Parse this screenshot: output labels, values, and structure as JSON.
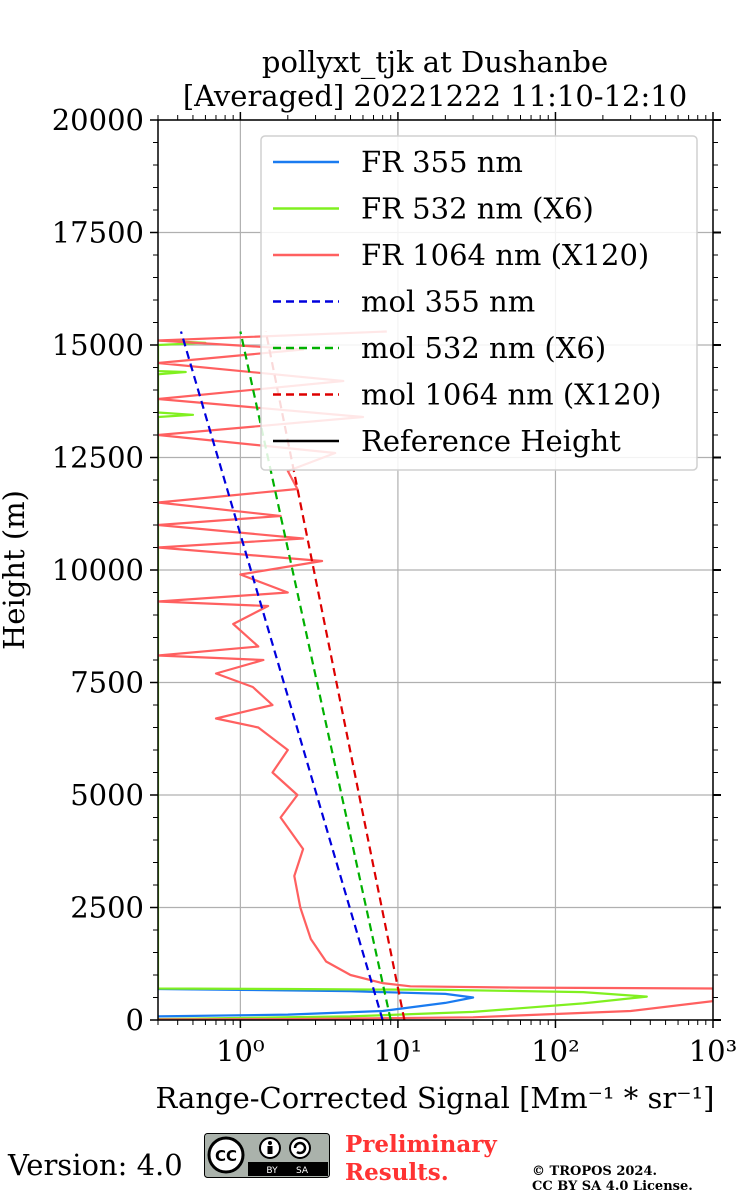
{
  "chart_data": {
    "type": "line",
    "title_line1": "pollyxt_tjk at Dushanbe",
    "title_line2": "[Averaged] 20221222 11:10-12:10",
    "xlabel": "Range-Corrected Signal [Mm⁻¹ * sr⁻¹]",
    "ylabel": "Height (m)",
    "xscale": "log",
    "xlim": [
      0.3,
      1000
    ],
    "ylim": [
      0,
      20000
    ],
    "x_tick_labels": [
      "10⁰",
      "10¹",
      "10²",
      "10³"
    ],
    "x_ticks": [
      1,
      10,
      100,
      1000
    ],
    "y_ticks": [
      0,
      2500,
      5000,
      7500,
      10000,
      12500,
      15000,
      17500,
      20000
    ],
    "y_tick_labels": [
      "0",
      "2500",
      "5000",
      "7500",
      "10000",
      "12500",
      "15000",
      "17500",
      "20000"
    ],
    "grid": true,
    "legend_position": "top-right",
    "series": [
      {
        "name": "FR 355 nm",
        "color": "#1a7bf0",
        "style": "solid",
        "points": [
          [
            0.3,
            80
          ],
          [
            2,
            120
          ],
          [
            8,
            200
          ],
          [
            20,
            380
          ],
          [
            30,
            500
          ],
          [
            20,
            580
          ],
          [
            5,
            640
          ],
          [
            1,
            670
          ],
          [
            0.3,
            690
          ]
        ]
      },
      {
        "name": "FR 532 nm (X6)",
        "color": "#80f020",
        "style": "solid",
        "points": [
          [
            0.3,
            20
          ],
          [
            5,
            80
          ],
          [
            30,
            180
          ],
          [
            150,
            370
          ],
          [
            380,
            520
          ],
          [
            150,
            620
          ],
          [
            20,
            670
          ],
          [
            2,
            690
          ],
          [
            0.3,
            700
          ],
          [
            0.3,
            13400
          ],
          [
            0.5,
            13450
          ],
          [
            0.3,
            13500
          ],
          [
            0.3,
            14350
          ],
          [
            0.45,
            14400
          ],
          [
            0.3,
            14420
          ],
          [
            0.3,
            15000
          ],
          [
            0.6,
            15050
          ],
          [
            0.3,
            15100
          ]
        ]
      },
      {
        "name": "FR 1064 nm (X120)",
        "color": "#ff6060",
        "style": "solid",
        "points": [
          [
            0.3,
            10
          ],
          [
            2,
            20
          ],
          [
            30,
            60
          ],
          [
            300,
            200
          ],
          [
            1000,
            420
          ],
          [
            1000,
            700
          ],
          [
            60,
            720
          ],
          [
            12,
            750
          ],
          [
            8,
            820
          ],
          [
            5,
            1000
          ],
          [
            3.5,
            1300
          ],
          [
            2.8,
            1800
          ],
          [
            2.4,
            2500
          ],
          [
            2.2,
            3200
          ],
          [
            2.5,
            3800
          ],
          [
            1.8,
            4500
          ],
          [
            2.3,
            5000
          ],
          [
            1.6,
            5500
          ],
          [
            2.0,
            6000
          ],
          [
            1.3,
            6500
          ],
          [
            0.7,
            6700
          ],
          [
            1.6,
            7000
          ],
          [
            1.2,
            7400
          ],
          [
            0.7,
            7700
          ],
          [
            1.4,
            8000
          ],
          [
            0.3,
            8100
          ],
          [
            1.3,
            8300
          ],
          [
            0.9,
            8800
          ],
          [
            1.5,
            9200
          ],
          [
            0.3,
            9300
          ],
          [
            2.0,
            9500
          ],
          [
            1.0,
            9900
          ],
          [
            3.3,
            10200
          ],
          [
            0.3,
            10500
          ],
          [
            2.5,
            10700
          ],
          [
            0.3,
            11000
          ],
          [
            1.8,
            11200
          ],
          [
            0.3,
            11500
          ],
          [
            2.3,
            11800
          ],
          [
            2.0,
            12200
          ],
          [
            4.0,
            12600
          ],
          [
            0.3,
            13000
          ],
          [
            6.0,
            13400
          ],
          [
            0.3,
            13800
          ],
          [
            4.5,
            14200
          ],
          [
            0.3,
            14600
          ],
          [
            2.5,
            14900
          ],
          [
            0.3,
            15100
          ],
          [
            8.5,
            15300
          ]
        ]
      },
      {
        "name": "mol 355 nm",
        "color": "#0000dd",
        "style": "dashed",
        "points": [
          [
            8.0,
            0
          ],
          [
            0.42,
            15300
          ]
        ]
      },
      {
        "name": "mol 532 nm (X6)",
        "color": "#00b000",
        "style": "dashed",
        "points": [
          [
            9.0,
            0
          ],
          [
            1.0,
            15300
          ]
        ]
      },
      {
        "name": "mol 1064 nm (X120)",
        "color": "#dd0000",
        "style": "dashed",
        "points": [
          [
            11.0,
            0
          ],
          [
            1.45,
            15300
          ]
        ]
      },
      {
        "name": "Reference Height",
        "color": "#000000",
        "style": "solid",
        "points": []
      }
    ]
  },
  "footer": {
    "version": "Version: 4.0",
    "cc_label": "CC",
    "cc_by": "BY",
    "cc_sa": "SA",
    "prelim_line1": "Preliminary",
    "prelim_line2": "Results.",
    "copyright_line1": "© TROPOS 2024.",
    "copyright_line2": "CC BY SA 4.0 License."
  }
}
